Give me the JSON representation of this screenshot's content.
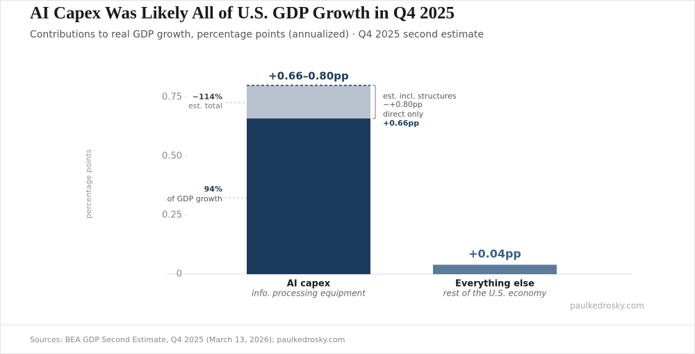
{
  "chart_data": {
    "type": "stacked-bar",
    "title": "AI Capex Was Likely All of U.S. GDP Growth in Q4 2025",
    "subtitle": "Contributions to real GDP growth, percentage points (annualized) · Q4 2025 second estimate",
    "y_label": "percentage points",
    "categories": [
      "AI capex",
      "Everything else"
    ],
    "category_sublabels": [
      "info. processing equipment",
      "rest of the U.S. economy"
    ],
    "series": [
      {
        "name": "direct only",
        "colors": [
          "#1c3a5c",
          "#5b7b9a"
        ],
        "values": [
          0.66,
          0.04
        ],
        "value_labels": [
          "+0.66pp",
          "+0.04pp"
        ]
      },
      {
        "name": "est. incl. structures",
        "color": "#b8c3cf",
        "values": [
          0.14,
          null
        ]
      }
    ],
    "ylim": [
      0,
      0.85
    ],
    "yticks": [
      0,
      0.25,
      {
        "value": 0.5,
        "label": "0.50"
      },
      0.75
    ],
    "annotations": {
      "range_label": "+0.66–0.80pp",
      "structures_total": "~+0.80pp",
      "total_share": "~114%",
      "total_share_note": "est. total",
      "direct_share": "94%",
      "direct_share_note": "of GDP growth"
    },
    "watermark": "paulkedrosky.com",
    "source": "Sources: BEA GDP Second Estimate, Q4 2025 (March 13, 2026); paulkedrosky.com"
  }
}
